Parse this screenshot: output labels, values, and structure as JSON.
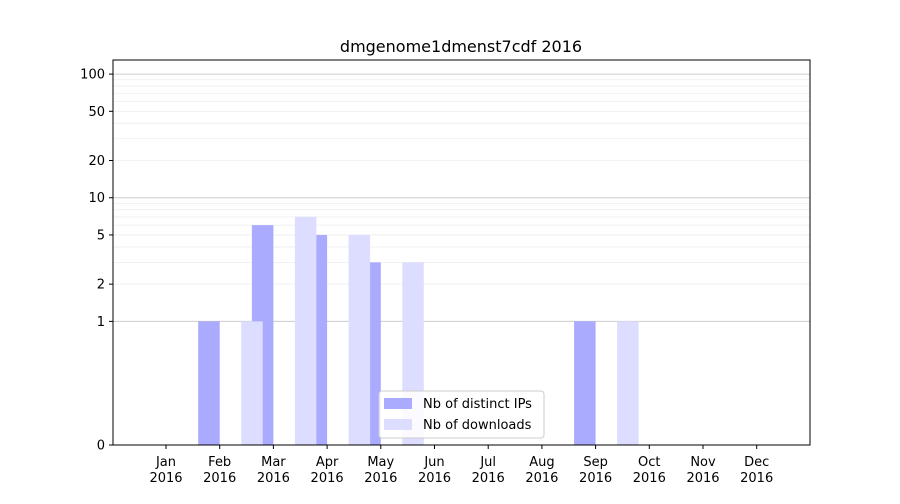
{
  "chart_data": {
    "type": "bar",
    "title": "dmgenome1dmenst7cdf 2016",
    "xlabel": "",
    "ylabel": "",
    "yscale": "symlog",
    "ylim": [
      0,
      130
    ],
    "yticks": [
      0,
      1,
      2,
      5,
      10,
      20,
      50,
      100
    ],
    "ytick_labels": [
      "0",
      "1",
      "2",
      "5",
      "10",
      "20",
      "50",
      "100"
    ],
    "categories": [
      "Jan\n2016",
      "Feb\n2016",
      "Mar\n2016",
      "Apr\n2016",
      "May\n2016",
      "Jun\n2016",
      "Jul\n2016",
      "Aug\n2016",
      "Sep\n2016",
      "Oct\n2016",
      "Nov\n2016",
      "Dec\n2016"
    ],
    "series": [
      {
        "name": "Nb of distinct IPs",
        "color": "#aaaaff",
        "values": [
          0,
          1,
          6,
          5,
          3,
          0,
          0,
          0,
          1,
          0,
          0,
          0
        ]
      },
      {
        "name": "Nb of downloads",
        "color": "#ddddff",
        "values": [
          0,
          1,
          7,
          5,
          3,
          0,
          0,
          0,
          1,
          0,
          0,
          0
        ]
      }
    ],
    "grid": true,
    "legend_position": "bottom-center"
  }
}
